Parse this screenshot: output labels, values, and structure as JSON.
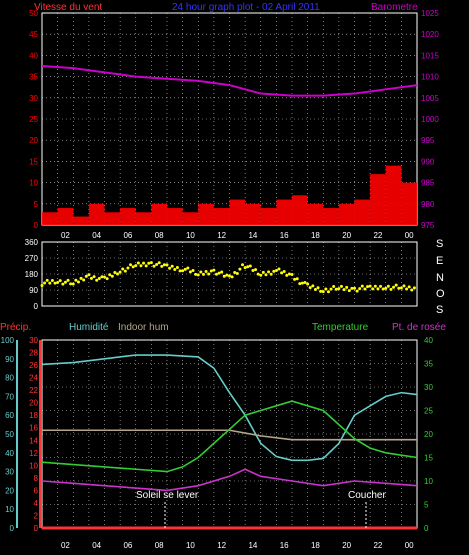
{
  "colors": {
    "bg": "#000000",
    "frame": "#ffffff",
    "grid": "#ffffff",
    "wind": "#ff0000",
    "wind_speed": "#ffffc0",
    "gust_tops": "#ffff00",
    "barometer": "#cc00cc",
    "direction": "#ffff00",
    "precip": "#ff3333",
    "humidity": "#66cccc",
    "indoor_hum": "#b7a58a",
    "temperature": "#33cc33",
    "dewpoint": "#cc33cc",
    "title": "#3333ff",
    "annot": "#ffffff"
  },
  "header": {
    "wind_label": "Vitesse du vent",
    "title": "24 hour graph plot - 02 April 2011",
    "baro_label": "Barometre"
  },
  "directions": [
    "S",
    "E",
    "N",
    "O",
    "S"
  ],
  "footer_labels": {
    "precip": "Précip.",
    "humidity": "Humidité",
    "indoor_hum": "Indoor hum",
    "temperature": "Temperature",
    "dewpoint": "Pt. de rosée"
  },
  "annotations": {
    "sunrise": "Soleil se lever",
    "sunset": "Coucher"
  },
  "x_ticks": [
    "02",
    "04",
    "06",
    "08",
    "10",
    "12",
    "14",
    "16",
    "18",
    "20",
    "22",
    "00"
  ],
  "chart_data": [
    {
      "type": "line",
      "title": "24 hour graph plot - 02 April 2011",
      "y_left_label": "Vitesse du vent",
      "y_left_ticks": [
        "0",
        "5",
        "10",
        "15",
        "20",
        "25",
        "30",
        "35",
        "40",
        "45",
        "50"
      ],
      "y_left_lim": [
        0,
        50
      ],
      "y_right_label": "Barometre",
      "y_right_ticks": [
        "975",
        "980",
        "985",
        "990",
        "995",
        "1000",
        "1005",
        "1010",
        "1015",
        "1020",
        "1025"
      ],
      "y_right_lim": [
        975,
        1025
      ],
      "x_ticks": [
        "02",
        "04",
        "06",
        "08",
        "10",
        "12",
        "14",
        "16",
        "18",
        "20",
        "22",
        "00"
      ],
      "grid": true,
      "series": [
        {
          "name": "Barometre",
          "axis": "right",
          "x": [
            0,
            2,
            4,
            6,
            8,
            10,
            12,
            14,
            16,
            18,
            20,
            22,
            24
          ],
          "y": [
            1012.5,
            1012,
            1011,
            1010,
            1009.5,
            1009,
            1008,
            1006,
            1005.5,
            1005.5,
            1006,
            1007,
            1008
          ]
        },
        {
          "name": "Vitesse du vent",
          "axis": "left",
          "style": "bars",
          "x": [
            0,
            1,
            2,
            3,
            4,
            5,
            6,
            7,
            8,
            9,
            10,
            11,
            12,
            13,
            14,
            15,
            16,
            17,
            18,
            19,
            20,
            21,
            22,
            23,
            24
          ],
          "y": [
            3,
            4,
            2,
            5,
            3,
            4,
            3,
            5,
            4,
            3,
            5,
            4,
            6,
            5,
            4,
            6,
            7,
            5,
            4,
            5,
            6,
            12,
            14,
            10,
            8
          ]
        }
      ]
    },
    {
      "type": "scatter",
      "y_lim": [
        0,
        360
      ],
      "y_ticks": [
        "0",
        "90",
        "180",
        "270",
        "360"
      ],
      "grid": true,
      "series": [
        {
          "name": "Direction",
          "x": [
            0,
            1,
            2,
            3,
            4,
            5,
            6,
            7,
            8,
            9,
            10,
            11,
            12,
            13,
            14,
            15,
            16,
            17,
            18,
            19,
            20,
            21,
            22,
            23,
            24
          ],
          "y": [
            130,
            140,
            125,
            170,
            150,
            200,
            230,
            240,
            220,
            210,
            180,
            200,
            160,
            230,
            180,
            200,
            170,
            110,
            90,
            100,
            95,
            100,
            110,
            105,
            100
          ]
        }
      ]
    },
    {
      "type": "line",
      "y_axes": [
        {
          "label": "Humidité",
          "ticks": [
            "0",
            "10",
            "20",
            "30",
            "40",
            "50",
            "60",
            "70",
            "80",
            "90",
            "100"
          ],
          "lim": [
            0,
            100
          ]
        },
        {
          "label": "Précip.",
          "ticks": [
            "0",
            "2",
            "4",
            "6",
            "8",
            "10",
            "12",
            "14",
            "16",
            "18",
            "20",
            "22",
            "24",
            "26",
            "28",
            "30"
          ],
          "lim": [
            0,
            30
          ]
        },
        {
          "label": "Temperature",
          "ticks": [
            "0",
            "5",
            "10",
            "15",
            "20",
            "25",
            "30",
            "35",
            "40"
          ],
          "lim": [
            0,
            40
          ]
        }
      ],
      "x_ticks": [
        "02",
        "04",
        "06",
        "08",
        "10",
        "12",
        "14",
        "16",
        "18",
        "20",
        "22",
        "00"
      ],
      "grid": true,
      "series": [
        {
          "name": "Humidité",
          "axis": "humidity",
          "x": [
            0,
            2,
            4,
            6,
            8,
            10,
            11,
            12,
            13,
            14,
            15,
            16,
            17,
            18,
            19,
            20,
            21,
            22,
            23,
            24
          ],
          "y": [
            87,
            88,
            90,
            92,
            92,
            91,
            85,
            72,
            60,
            45,
            38,
            36,
            36,
            37,
            45,
            60,
            65,
            70,
            72,
            71
          ]
        },
        {
          "name": "Indoor hum",
          "axis": "humidity",
          "x": [
            0,
            4,
            8,
            10,
            12,
            14,
            16,
            18,
            20,
            22,
            24
          ],
          "y": [
            52,
            52,
            52,
            52,
            52,
            49,
            47,
            47,
            47,
            47,
            47
          ]
        },
        {
          "name": "Temperature",
          "axis": "temperature",
          "x": [
            0,
            2,
            4,
            6,
            8,
            9,
            10,
            11,
            12,
            13,
            14,
            15,
            16,
            17,
            18,
            19,
            20,
            21,
            22,
            23,
            24
          ],
          "y": [
            14,
            13.5,
            13,
            12.5,
            12,
            13,
            15,
            18,
            21,
            24,
            25,
            26,
            27,
            26,
            25,
            22,
            19,
            17,
            16,
            15.5,
            15
          ]
        },
        {
          "name": "Pt. de rosée",
          "axis": "temperature",
          "x": [
            0,
            2,
            4,
            6,
            8,
            10,
            12,
            13,
            14,
            16,
            18,
            20,
            22,
            24
          ],
          "y": [
            10,
            9.5,
            9,
            8.5,
            8,
            9,
            11,
            12.5,
            11,
            10,
            9,
            10,
            9.5,
            9
          ]
        },
        {
          "name": "Précip.",
          "axis": "precip",
          "x": [
            0,
            24
          ],
          "y": [
            0,
            0
          ]
        }
      ],
      "annotations": [
        "Soleil se lever",
        "Coucher"
      ]
    }
  ]
}
